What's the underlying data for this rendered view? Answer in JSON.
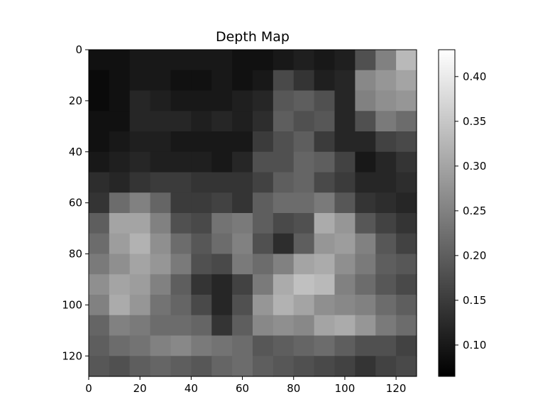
{
  "chart_data": {
    "type": "heatmap",
    "title": "Depth Map",
    "xlabel": "",
    "ylabel": "",
    "colormap": "gray",
    "colormap_low": "#000000",
    "colormap_high": "#ffffff",
    "xlim": [
      0,
      128
    ],
    "ylim": [
      128,
      0
    ],
    "x_ticks": [
      0,
      20,
      40,
      60,
      80,
      100,
      120
    ],
    "y_ticks": [
      0,
      20,
      40,
      60,
      80,
      100,
      120
    ],
    "colorbar": {
      "min": 0.065,
      "max": 0.43,
      "ticks": [
        0.1,
        0.15,
        0.2,
        0.25,
        0.3,
        0.35,
        0.4
      ],
      "tick_labels": [
        "0.10",
        "0.15",
        "0.20",
        "0.25",
        "0.30",
        "0.35",
        "0.40"
      ]
    },
    "grid_note": "16x16 blocks of 8x8 pixels each, values estimated",
    "block_size": 8,
    "values": [
      [
        0.09,
        0.09,
        0.1,
        0.1,
        0.1,
        0.1,
        0.1,
        0.09,
        0.09,
        0.1,
        0.11,
        0.1,
        0.11,
        0.18,
        0.25,
        0.33
      ],
      [
        0.08,
        0.09,
        0.1,
        0.1,
        0.09,
        0.09,
        0.1,
        0.09,
        0.1,
        0.17,
        0.14,
        0.11,
        0.12,
        0.26,
        0.28,
        0.3
      ],
      [
        0.08,
        0.09,
        0.12,
        0.11,
        0.1,
        0.1,
        0.1,
        0.11,
        0.12,
        0.19,
        0.2,
        0.18,
        0.12,
        0.25,
        0.27,
        0.28
      ],
      [
        0.09,
        0.09,
        0.12,
        0.12,
        0.12,
        0.11,
        0.12,
        0.11,
        0.13,
        0.2,
        0.18,
        0.19,
        0.12,
        0.18,
        0.24,
        0.22
      ],
      [
        0.09,
        0.1,
        0.11,
        0.11,
        0.1,
        0.1,
        0.1,
        0.1,
        0.15,
        0.18,
        0.2,
        0.15,
        0.12,
        0.12,
        0.16,
        0.17
      ],
      [
        0.1,
        0.11,
        0.12,
        0.11,
        0.11,
        0.11,
        0.1,
        0.12,
        0.18,
        0.18,
        0.21,
        0.2,
        0.16,
        0.1,
        0.12,
        0.14
      ],
      [
        0.13,
        0.12,
        0.14,
        0.15,
        0.15,
        0.14,
        0.14,
        0.14,
        0.16,
        0.2,
        0.21,
        0.17,
        0.15,
        0.12,
        0.12,
        0.13
      ],
      [
        0.14,
        0.22,
        0.25,
        0.21,
        0.15,
        0.15,
        0.16,
        0.14,
        0.2,
        0.22,
        0.22,
        0.24,
        0.19,
        0.14,
        0.13,
        0.12
      ],
      [
        0.2,
        0.3,
        0.3,
        0.25,
        0.18,
        0.17,
        0.23,
        0.24,
        0.2,
        0.17,
        0.18,
        0.31,
        0.28,
        0.19,
        0.16,
        0.14
      ],
      [
        0.22,
        0.29,
        0.32,
        0.27,
        0.22,
        0.19,
        0.22,
        0.25,
        0.18,
        0.13,
        0.2,
        0.28,
        0.29,
        0.25,
        0.19,
        0.16
      ],
      [
        0.24,
        0.27,
        0.3,
        0.28,
        0.24,
        0.18,
        0.17,
        0.24,
        0.22,
        0.25,
        0.3,
        0.31,
        0.27,
        0.24,
        0.2,
        0.19
      ],
      [
        0.27,
        0.3,
        0.29,
        0.25,
        0.2,
        0.14,
        0.12,
        0.16,
        0.24,
        0.31,
        0.34,
        0.33,
        0.25,
        0.22,
        0.19,
        0.17
      ],
      [
        0.25,
        0.31,
        0.28,
        0.23,
        0.21,
        0.17,
        0.12,
        0.18,
        0.28,
        0.32,
        0.3,
        0.27,
        0.26,
        0.25,
        0.22,
        0.2
      ],
      [
        0.21,
        0.25,
        0.24,
        0.22,
        0.22,
        0.21,
        0.14,
        0.2,
        0.26,
        0.27,
        0.26,
        0.3,
        0.31,
        0.28,
        0.24,
        0.22
      ],
      [
        0.2,
        0.22,
        0.23,
        0.25,
        0.26,
        0.24,
        0.23,
        0.22,
        0.19,
        0.2,
        0.21,
        0.22,
        0.2,
        0.18,
        0.18,
        0.16
      ],
      [
        0.19,
        0.18,
        0.2,
        0.21,
        0.2,
        0.19,
        0.21,
        0.22,
        0.2,
        0.19,
        0.18,
        0.17,
        0.16,
        0.14,
        0.16,
        0.17
      ]
    ]
  }
}
